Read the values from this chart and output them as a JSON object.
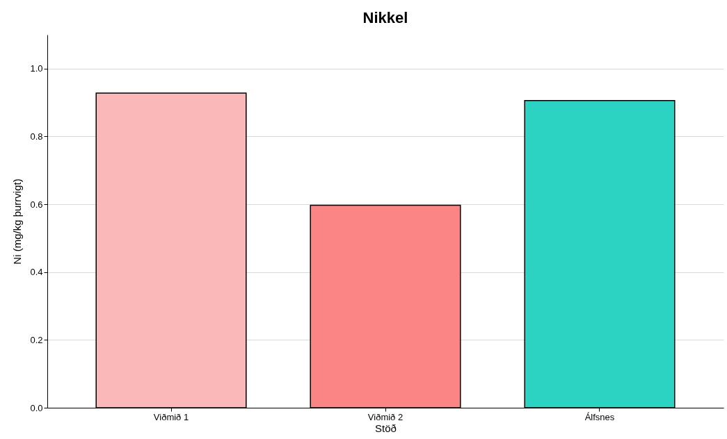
{
  "chart_data": {
    "type": "bar",
    "title": "Nikkel",
    "xlabel": "Stöð",
    "ylabel": "Ni (mg/kg þurrvigt)",
    "categories": [
      "Viðmið 1",
      "Viðmið 2",
      "Álfsnes"
    ],
    "values": [
      0.928,
      0.597,
      0.906
    ],
    "colors": [
      "#fbb8b8",
      "#fa8584",
      "#2dd3c2"
    ],
    "ylim": [
      0,
      1.1
    ],
    "yticks": [
      {
        "value": 0,
        "label": "0.0"
      },
      {
        "value": 0.2,
        "label": "0.2"
      },
      {
        "value": 0.4,
        "label": "0.4"
      },
      {
        "value": 0.6,
        "label": "0.6"
      },
      {
        "value": 0.8,
        "label": "0.8"
      },
      {
        "value": 1,
        "label": "1.0"
      }
    ],
    "grid": "y"
  }
}
